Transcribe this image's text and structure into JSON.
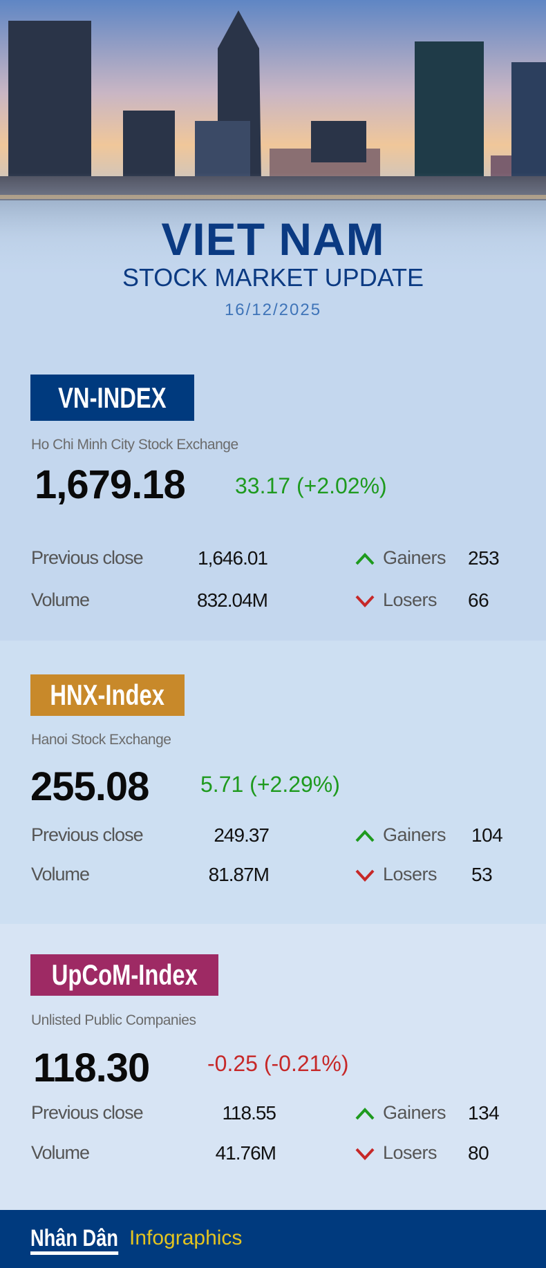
{
  "header": {
    "title": "VIET NAM",
    "subtitle": "STOCK MARKET UPDATE",
    "date": "16/12/2025"
  },
  "colors": {
    "up": "#1e9a1e",
    "down": "#c62828",
    "navy": "#003a7e",
    "hnx": "#c8892a",
    "upcom": "#9e2a64"
  },
  "indices": [
    {
      "name": "VN-INDEX",
      "exchange": "Ho Chi Minh City Stock Exchange",
      "value": "1,679.18",
      "change": "33.17 (+2.02%)",
      "direction": "up",
      "previous_close_label": "Previous close",
      "previous_close": "1,646.01",
      "volume_label": "Volume",
      "volume": "832.04M",
      "gainers_label": "Gainers",
      "gainers": "253",
      "losers_label": "Losers",
      "losers": "66"
    },
    {
      "name": "HNX-Index",
      "exchange": "Hanoi Stock Exchange",
      "value": "255.08",
      "change": "5.71 (+2.29%)",
      "direction": "up",
      "previous_close_label": "Previous close",
      "previous_close": "249.37",
      "volume_label": "Volume",
      "volume": "81.87M",
      "gainers_label": "Gainers",
      "gainers": "104",
      "losers_label": "Losers",
      "losers": "53"
    },
    {
      "name": "UpCoM-Index",
      "exchange": "Unlisted Public Companies",
      "value": "118.30",
      "change": "-0.25 (-0.21%)",
      "direction": "down",
      "previous_close_label": "Previous close",
      "previous_close": "118.55",
      "volume_label": "Volume",
      "volume": "41.76M",
      "gainers_label": "Gainers",
      "gainers": "134",
      "losers_label": "Losers",
      "losers": "80"
    }
  ],
  "footer": {
    "brand": "Nhân Dân",
    "label": "Infographics"
  }
}
